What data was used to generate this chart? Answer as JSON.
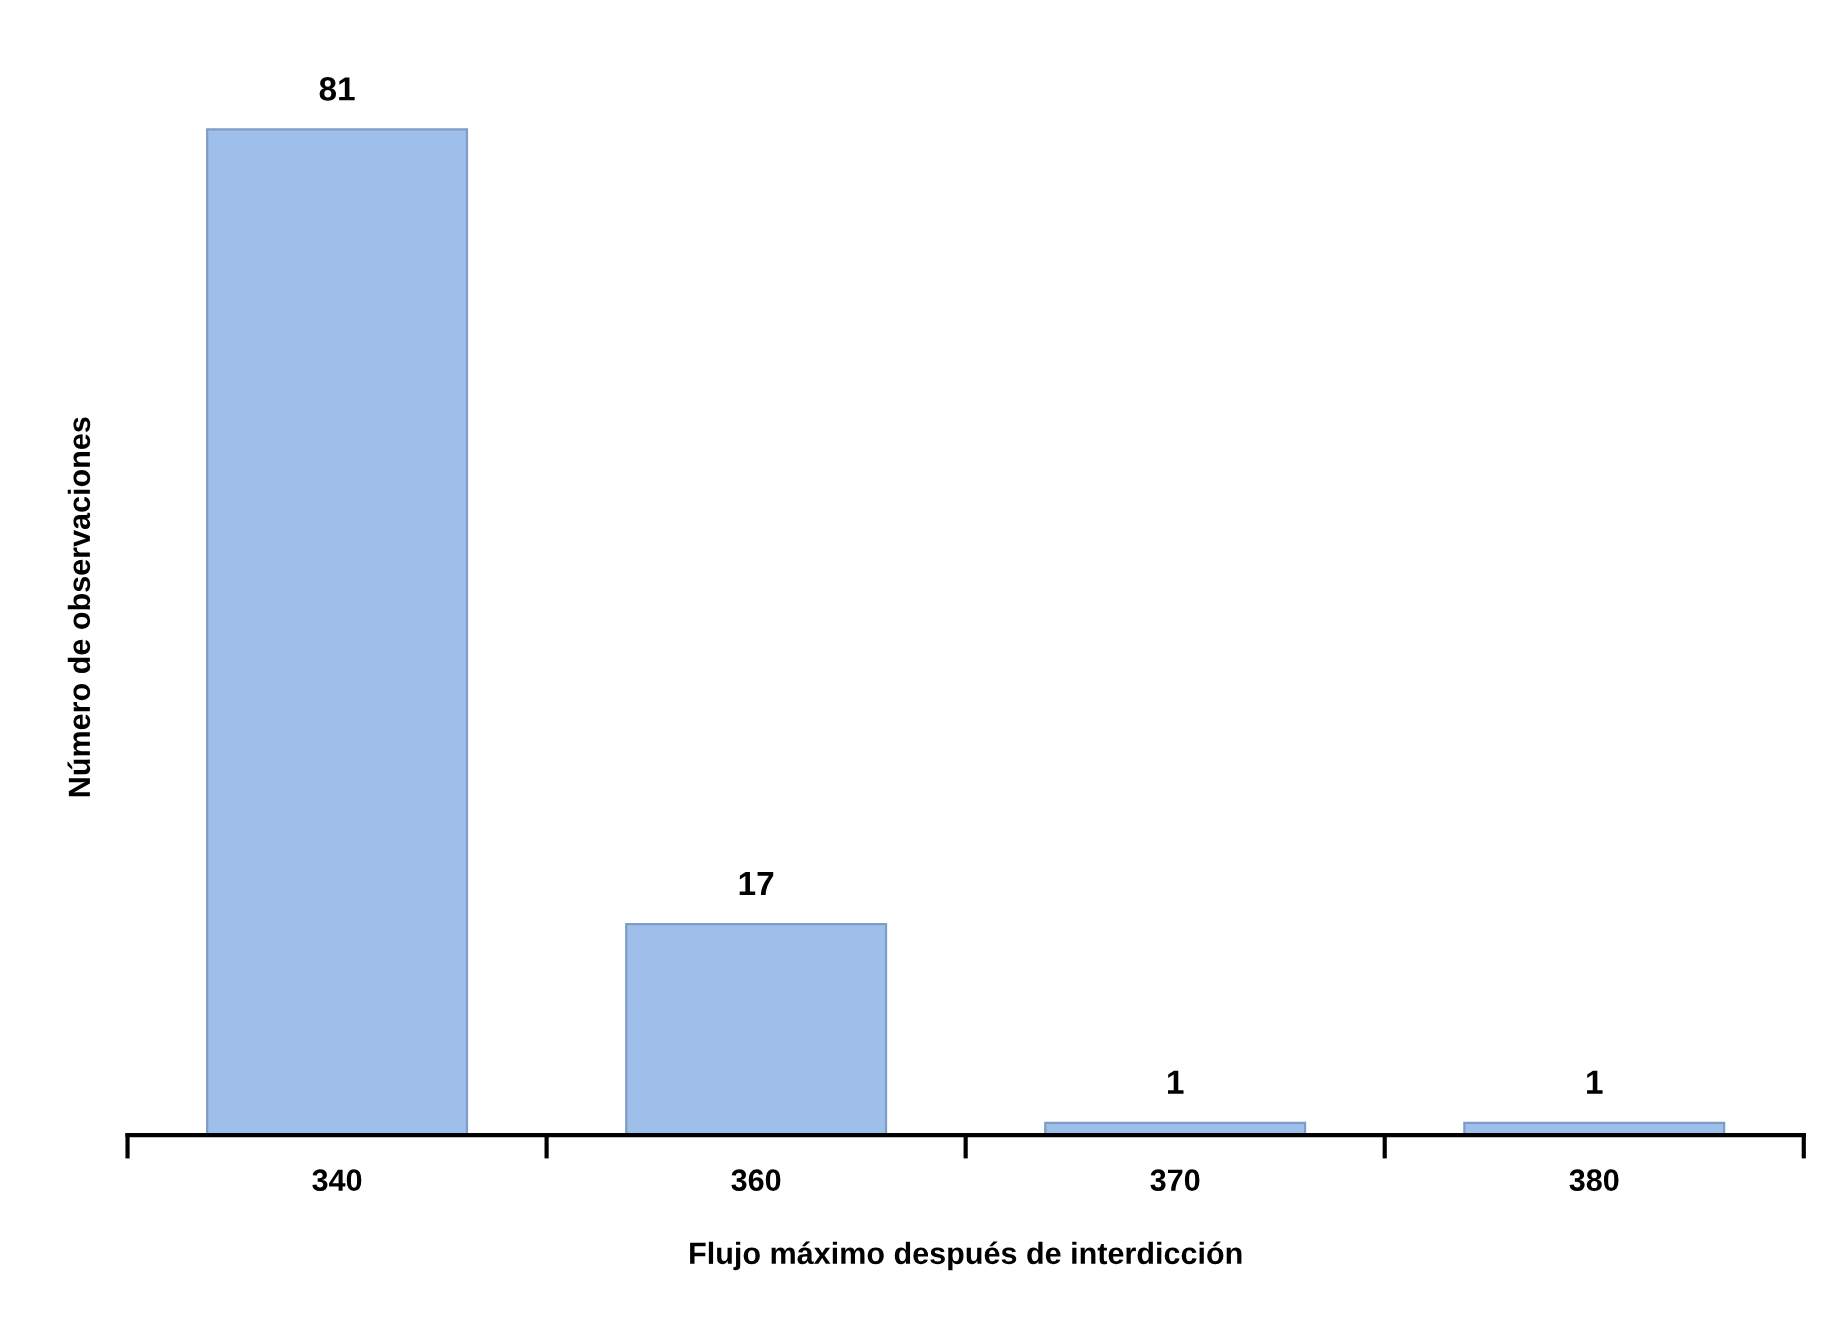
{
  "chart_data": {
    "type": "bar",
    "xlabel": "Flujo máximo después de interdicción",
    "ylabel": "Número de observaciones",
    "categories": [
      "340",
      "360",
      "370",
      "380"
    ],
    "values": [
      81,
      17,
      1,
      1
    ],
    "color": "#9dbfe9",
    "data_labels": true,
    "tick_labels": "x",
    "grid": false
  }
}
